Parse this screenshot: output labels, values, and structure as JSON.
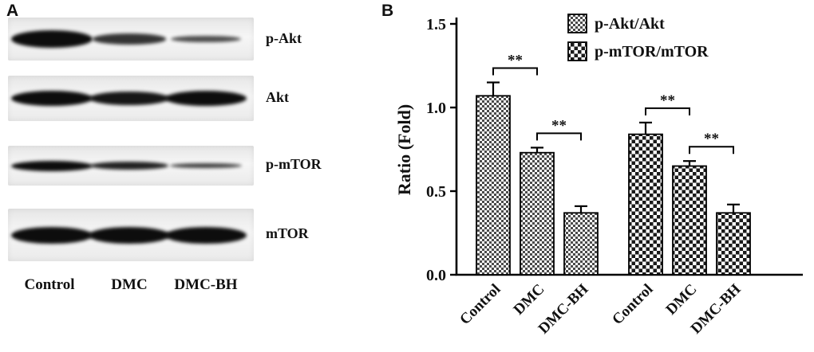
{
  "figure": {
    "panel_a_label": "A",
    "panel_b_label": "B"
  },
  "blot": {
    "lane_labels": [
      "Control",
      "DMC",
      "DMC-BH"
    ],
    "rows": [
      {
        "label": "p-Akt",
        "thickness": 22,
        "bands": [
          1.0,
          0.62,
          0.38
        ]
      },
      {
        "label": "Akt",
        "thickness": 19,
        "bands": [
          1.0,
          0.92,
          1.0
        ]
      },
      {
        "label": "p-mTOR",
        "thickness": 13,
        "bands": [
          1.0,
          0.8,
          0.5
        ]
      },
      {
        "label": "mTOR",
        "thickness": 21,
        "bands": [
          1.0,
          1.0,
          1.0
        ]
      }
    ]
  },
  "chart_data": {
    "type": "bar",
    "title": "",
    "xlabel": "",
    "ylabel": "Ratio (Fold)",
    "ylim": [
      0,
      1.5
    ],
    "yticks": [
      0.0,
      0.5,
      1.0,
      1.5
    ],
    "grid": false,
    "legend_position": "top",
    "categories": [
      "Control",
      "DMC",
      "DMC-BH",
      "Control",
      "DMC",
      "DMC-BH"
    ],
    "series": [
      {
        "name": "p-Akt/Akt",
        "values": [
          1.07,
          0.73,
          0.37
        ],
        "errors": [
          0.08,
          0.03,
          0.04
        ]
      },
      {
        "name": "p-mTOR/mTOR",
        "values": [
          0.84,
          0.65,
          0.37
        ],
        "errors": [
          0.07,
          0.03,
          0.05
        ]
      }
    ],
    "significance": [
      {
        "group": 0,
        "from": 0,
        "to": 1,
        "label": "**"
      },
      {
        "group": 0,
        "from": 1,
        "to": 2,
        "label": "**"
      },
      {
        "group": 1,
        "from": 0,
        "to": 1,
        "label": "**"
      },
      {
        "group": 1,
        "from": 1,
        "to": 2,
        "label": "**"
      }
    ]
  }
}
